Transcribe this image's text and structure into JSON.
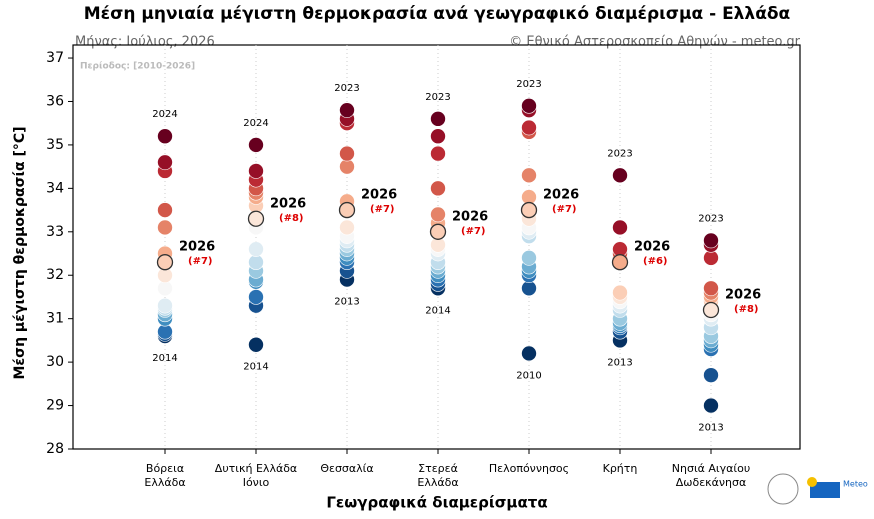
{
  "chart_data": {
    "type": "strip",
    "title": "Μέση μηνιαία μέγιστη θερμοκρασία ανά γεωγραφικό διαμέρισμα - Ελλάδα",
    "subtitle_left": "Μήνας: Ιούλιος, 2026",
    "subtitle_right": "© Εθνικό Αστεροσκοπείο Αθηνών - meteo.gr",
    "period": "Περίοδος: [2010-2026]",
    "y_label": "Μέση μέγιστη θερμοκρασία [°C]",
    "x_label": "Γεωγραφικά διαμερίσματα",
    "logo_text": "Meteo",
    "ylim": [
      28,
      37.3
    ],
    "yticks": [
      28,
      29,
      30,
      31,
      32,
      33,
      34,
      35,
      36,
      37
    ],
    "grid": true,
    "colormap": [
      "#053061",
      "#2166ac",
      "#4393c3",
      "#92c5de",
      "#d1e5f0",
      "#f7f7f7",
      "#fddbc7",
      "#f4a582",
      "#d6604d",
      "#b2182b",
      "#67001f"
    ],
    "categories": [
      [
        "Βόρεια",
        "Ελλάδα"
      ],
      [
        "Δυτική Ελλάδα",
        "Ιόνιο"
      ],
      [
        "Θεσσαλία"
      ],
      [
        "Στερεά",
        "Ελλάδα"
      ],
      [
        "Πελοπόννησος"
      ],
      [
        "Κρήτη"
      ],
      [
        "Νησιά Αιγαίου",
        "Δωδεκάνησα"
      ]
    ],
    "values": [
      [
        35.2,
        34.6,
        34.4,
        33.5,
        33.1,
        32.5,
        32.0,
        31.7,
        31.3,
        31.25,
        31.2,
        31.1,
        31.0,
        30.7,
        30.65,
        30.6
      ],
      [
        35.0,
        34.4,
        34.2,
        34.0,
        33.9,
        33.8,
        33.6,
        33.1,
        32.6,
        32.3,
        32.1,
        31.9,
        31.85,
        31.5,
        31.3,
        30.4
      ],
      [
        35.8,
        35.6,
        35.5,
        34.8,
        34.5,
        33.7,
        33.1,
        32.9,
        32.8,
        32.7,
        32.6,
        32.5,
        32.4,
        32.3,
        32.1,
        31.9
      ],
      [
        35.6,
        35.2,
        34.8,
        34.0,
        33.4,
        33.2,
        32.7,
        32.6,
        32.5,
        32.3,
        32.2,
        32.1,
        32.0,
        31.9,
        31.8,
        31.7
      ],
      [
        35.9,
        35.8,
        35.4,
        35.3,
        34.3,
        33.8,
        33.3,
        33.1,
        33.0,
        32.9,
        32.4,
        32.2,
        32.1,
        32.0,
        31.7,
        30.2
      ],
      [
        34.3,
        33.1,
        32.6,
        32.5,
        32.4,
        31.6,
        31.5,
        31.4,
        31.3,
        31.2,
        31.0,
        30.9,
        30.85,
        30.8,
        30.7,
        30.5
      ],
      [
        32.8,
        32.7,
        32.4,
        31.7,
        31.6,
        31.5,
        31.4,
        31.1,
        31.0,
        30.8,
        30.6,
        30.5,
        30.4,
        30.3,
        29.7,
        29.0
      ]
    ],
    "annotations": [
      {
        "max_year": "2024",
        "min_year": "2014",
        "current_label": "2026",
        "rank_label": "(#7)",
        "current_value": 32.3
      },
      {
        "max_year": "2024",
        "min_year": "2014",
        "current_label": "2026",
        "rank_label": "(#8)",
        "current_value": 33.3
      },
      {
        "max_year": "2023",
        "min_year": "2013",
        "current_label": "2026",
        "rank_label": "(#7)",
        "current_value": 33.5
      },
      {
        "max_year": "2023",
        "min_year": "2014",
        "current_label": "2026",
        "rank_label": "(#7)",
        "current_value": 33.0
      },
      {
        "max_year": "2023",
        "min_year": "2010",
        "current_label": "2026",
        "rank_label": "(#7)",
        "current_value": 33.5
      },
      {
        "max_year": "2023",
        "min_year": "2013",
        "current_label": "2026",
        "rank_label": "(#6)",
        "current_value": 32.3
      },
      {
        "max_year": "2023",
        "min_year": "2013",
        "current_label": "2026",
        "rank_label": "(#8)",
        "current_value": 31.2
      }
    ]
  }
}
